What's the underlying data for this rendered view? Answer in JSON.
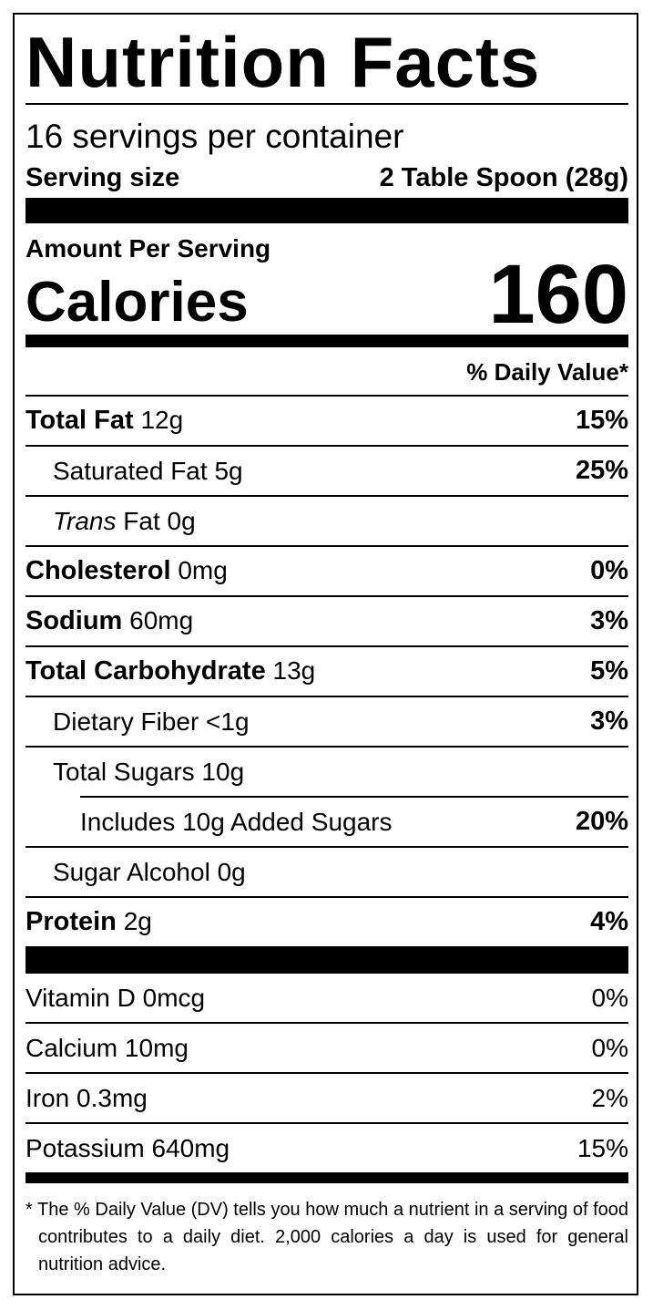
{
  "header": {
    "title": "Nutrition Facts",
    "servings": "16 servings per container",
    "serving_size_label": "Serving size",
    "serving_size": "2 Table Spoon (28g)"
  },
  "calories": {
    "amount_per_serving": "Amount Per Serving",
    "label": "Calories",
    "value": "160"
  },
  "daily_value_header": "% Daily Value*",
  "nutrients": [
    {
      "name": "Total Fat",
      "amount": "12g",
      "dv": "15%",
      "bold": true,
      "indent": 0
    },
    {
      "name": "Saturated Fat",
      "amount": "5g",
      "dv": "25%",
      "bold": false,
      "indent": 1
    },
    {
      "italic_prefix": "Trans",
      "name": "Fat",
      "amount": "0g",
      "bold": false,
      "indent": 1
    },
    {
      "name": "Cholesterol",
      "amount": "0mg",
      "dv": "0%",
      "bold": true,
      "indent": 0
    },
    {
      "name": "Sodium",
      "amount": "60mg",
      "dv": "3%",
      "bold": true,
      "indent": 0
    },
    {
      "name": "Total Carbohydrate",
      "amount": "13g",
      "dv": "5%",
      "bold": true,
      "indent": 0
    },
    {
      "name": "Dietary Fiber",
      "amount": "<1g",
      "dv": "3%",
      "bold": false,
      "indent": 1
    },
    {
      "name": "Total Sugars",
      "amount": "10g",
      "bold": false,
      "indent": 1
    },
    {
      "name": "Includes 10g Added Sugars",
      "dv": "20%",
      "bold": false,
      "indent": 2
    },
    {
      "name": "Sugar Alcohol",
      "amount": "0g",
      "bold": false,
      "indent": 1
    },
    {
      "name": "Protein",
      "amount": "2g",
      "dv": "4%",
      "bold": true,
      "indent": 0
    }
  ],
  "vitamins": [
    {
      "name": "Vitamin D",
      "amount": "0mcg",
      "dv": "0%"
    },
    {
      "name": "Calcium",
      "amount": "10mg",
      "dv": "0%"
    },
    {
      "name": "Iron",
      "amount": "0.3mg",
      "dv": "2%"
    },
    {
      "name": "Potassium",
      "amount": "640mg",
      "dv": "15%"
    }
  ],
  "footnote": "* The % Daily Value (DV) tells you how much a nutrient in a serving of food contributes to a daily diet. 2,000 calories a day is used for general nutrition advice."
}
